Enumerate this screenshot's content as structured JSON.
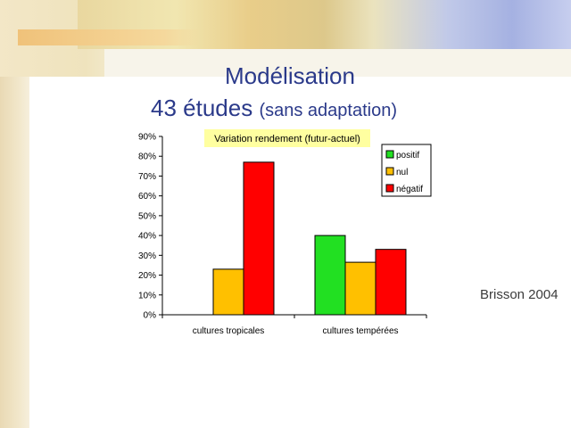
{
  "slide": {
    "title": "Modélisation",
    "subtitle_main": "43 études",
    "subtitle_note": "(sans adaptation)",
    "source": "Brisson 2004"
  },
  "chart_data": {
    "type": "bar",
    "title": "Variation rendement (futur-actuel)",
    "categories": [
      "cultures tropicales",
      "cultures tempérées"
    ],
    "series": [
      {
        "name": "positif",
        "color": "#22e022",
        "values": [
          0,
          40
        ]
      },
      {
        "name": "nul",
        "color": "#ffc000",
        "values": [
          23,
          26.5
        ]
      },
      {
        "name": "négatif",
        "color": "#ff0000",
        "values": [
          77,
          33
        ]
      }
    ],
    "ylim": [
      0,
      90
    ],
    "yticks": [
      0,
      10,
      20,
      30,
      40,
      50,
      60,
      70,
      80,
      90
    ],
    "ytick_labels": [
      "0%",
      "10%",
      "20%",
      "30%",
      "40%",
      "50%",
      "60%",
      "70%",
      "80%",
      "90%"
    ],
    "legend_position": "top-right",
    "grid": false
  }
}
